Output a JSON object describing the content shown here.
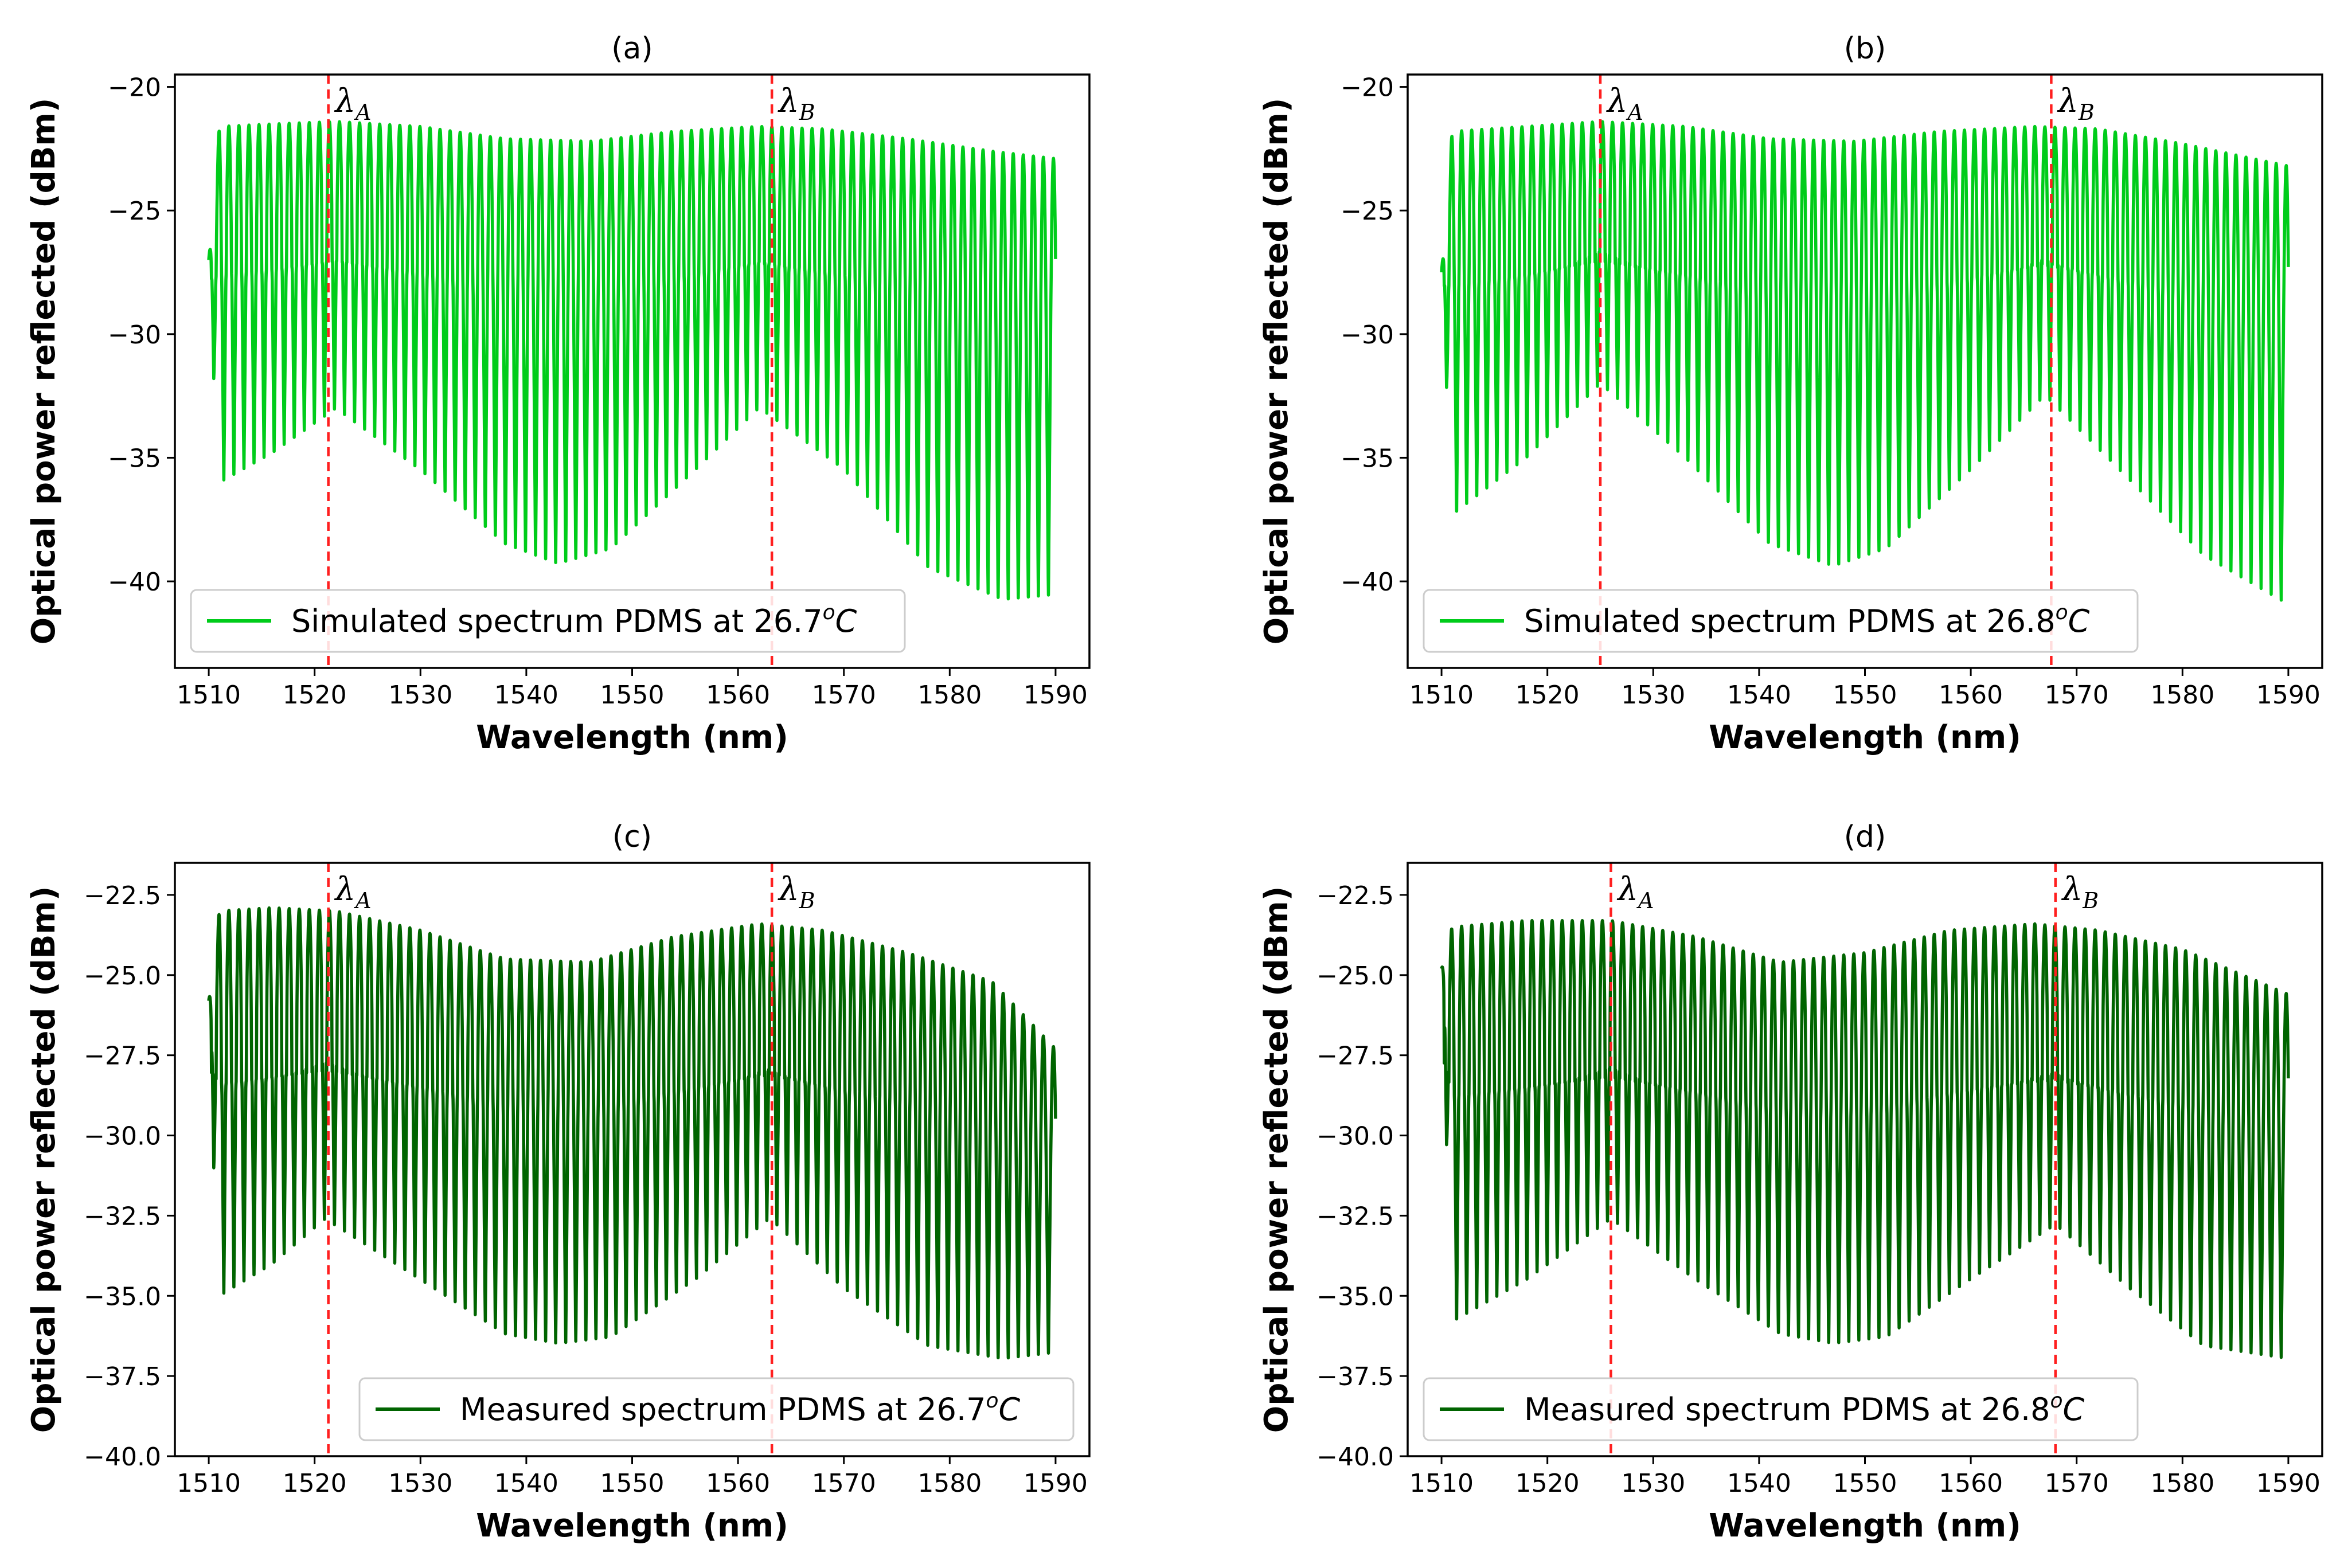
{
  "colors": {
    "simulated": "#00cc1a",
    "measured": "#006400",
    "marker": "#ff1f1f",
    "axis": "#000000",
    "legend_border": "#cccccc"
  },
  "chart_data": [
    {
      "type": "line",
      "panel": "(a)",
      "title": "(a)",
      "xlabel": "Wavelength (nm)",
      "ylabel": "Optical power reflected (dBm)",
      "xlim": [
        1506.8,
        1593.2
      ],
      "ylim": [
        -43.5,
        -19.5
      ],
      "xticks": [
        1510,
        1520,
        1530,
        1540,
        1550,
        1560,
        1570,
        1580,
        1590
      ],
      "yticks": [
        -40,
        -35,
        -30,
        -25,
        -20
      ],
      "ytick_labels": [
        "−40",
        "−35",
        "−30",
        "−25",
        "−20"
      ],
      "legend": {
        "text": "Simulated spectrum PDMS at 26.7",
        "sup": "o",
        "unit": "C",
        "location": "lower-left"
      },
      "markers": [
        {
          "label": "λ",
          "sub": "A",
          "x": 1521.3
        },
        {
          "label": "λ",
          "sub": "B",
          "x": 1563.2
        }
      ],
      "series": [
        {
          "name": "Simulated spectrum PDMS at 26.7°C",
          "color_key": "simulated",
          "x_range": [
            1510,
            1590
          ],
          "fringe_period_nm": 0.95,
          "upper_envelope": {
            "x": [
              1510,
              1511,
              1516,
              1522,
              1530,
              1538,
              1546,
              1554,
              1562,
              1568,
              1576,
              1584,
              1590
            ],
            "y": [
              -27.0,
              -21.6,
              -21.5,
              -21.4,
              -21.6,
              -22.1,
              -22.2,
              -21.8,
              -21.6,
              -21.7,
              -22.1,
              -22.6,
              -22.9
            ]
          },
          "lower_envelope": {
            "x": [
              1510,
              1511,
              1516,
              1522,
              1530,
              1538,
              1543,
              1548,
              1556,
              1562,
              1570,
              1578,
              1585,
              1590
            ],
            "y": [
              -28.0,
              -36.0,
              -34.8,
              -33.0,
              -35.5,
              -38.5,
              -39.3,
              -38.7,
              -35.5,
              -33.0,
              -35.5,
              -39.5,
              -40.8,
              -40.6
            ]
          },
          "secondary_minimum_y": -28.2
        }
      ]
    },
    {
      "type": "line",
      "panel": "(b)",
      "title": "(b)",
      "xlabel": "Wavelength (nm)",
      "ylabel": "Optical power reflected (dBm)",
      "xlim": [
        1506.8,
        1593.2
      ],
      "ylim": [
        -43.5,
        -19.5
      ],
      "xticks": [
        1510,
        1520,
        1530,
        1540,
        1550,
        1560,
        1570,
        1580,
        1590
      ],
      "yticks": [
        -40,
        -35,
        -30,
        -25,
        -20
      ],
      "ytick_labels": [
        "−40",
        "−35",
        "−30",
        "−25",
        "−20"
      ],
      "legend": {
        "text": "Simulated spectrum PDMS at 26.8",
        "sup": "o",
        "unit": "C",
        "location": "lower-left"
      },
      "markers": [
        {
          "label": "λ",
          "sub": "A",
          "x": 1525.0
        },
        {
          "label": "λ",
          "sub": "B",
          "x": 1567.6
        }
      ],
      "series": [
        {
          "name": "Simulated spectrum PDMS at 26.8°C",
          "color_key": "simulated",
          "x_range": [
            1510,
            1590
          ],
          "fringe_period_nm": 0.95,
          "upper_envelope": {
            "x": [
              1510,
              1511,
              1518,
              1525,
              1533,
              1541,
              1549,
              1557,
              1566,
              1572,
              1580,
              1590
            ],
            "y": [
              -27.5,
              -21.8,
              -21.6,
              -21.4,
              -21.6,
              -22.1,
              -22.2,
              -21.8,
              -21.6,
              -21.7,
              -22.3,
              -23.2
            ]
          },
          "lower_envelope": {
            "x": [
              1510,
              1511,
              1518,
              1525,
              1533,
              1541,
              1547,
              1552,
              1560,
              1567,
              1574,
              1582,
              1590
            ],
            "y": [
              -27.5,
              -37.3,
              -35.0,
              -32.0,
              -35.0,
              -38.5,
              -39.4,
              -38.7,
              -35.5,
              -32.5,
              -35.5,
              -39.0,
              -41.0
            ]
          },
          "secondary_minimum_y": -28.5
        }
      ]
    },
    {
      "type": "line",
      "panel": "(c)",
      "title": "(c)",
      "xlabel": "Wavelength (nm)",
      "ylabel": "Optical power reflected (dBm)",
      "xlim": [
        1506.8,
        1593.2
      ],
      "ylim": [
        -40.0,
        -21.5
      ],
      "xticks": [
        1510,
        1520,
        1530,
        1540,
        1550,
        1560,
        1570,
        1580,
        1590
      ],
      "yticks": [
        -40.0,
        -37.5,
        -35.0,
        -32.5,
        -30.0,
        -27.5,
        -25.0,
        -22.5
      ],
      "ytick_labels": [
        "−40.0",
        "−37.5",
        "−35.0",
        "−32.5",
        "−30.0",
        "−27.5",
        "−25.0",
        "−22.5"
      ],
      "legend": {
        "text": "Measured spectrum PDMS at 26.7",
        "sup": "o",
        "unit": "C",
        "location": "lower-right"
      },
      "markers": [
        {
          "label": "λ",
          "sub": "A",
          "x": 1521.3
        },
        {
          "label": "λ",
          "sub": "B",
          "x": 1563.2
        }
      ],
      "series": [
        {
          "name": "Measured spectrum PDMS at 26.7°C",
          "color_key": "measured",
          "x_range": [
            1510,
            1590
          ],
          "fringe_period_nm": 0.95,
          "upper_envelope": {
            "x": [
              1510,
              1511,
              1516,
              1522,
              1530,
              1538,
              1546,
              1554,
              1562,
              1568,
              1576,
              1584,
              1590
            ],
            "y": [
              -25.8,
              -23.0,
              -22.9,
              -23.0,
              -23.6,
              -24.5,
              -24.6,
              -23.8,
              -23.4,
              -23.6,
              -24.3,
              -25.2,
              -27.3
            ]
          },
          "lower_envelope": {
            "x": [
              1510,
              1511,
              1516,
              1521,
              1530,
              1538,
              1543,
              1548,
              1556,
              1563,
              1570,
              1578,
              1585,
              1590
            ],
            "y": [
              -27.4,
              -35.0,
              -34.0,
              -32.6,
              -34.5,
              -36.2,
              -36.5,
              -36.3,
              -34.5,
              -32.6,
              -34.8,
              -36.6,
              -37.0,
              -36.8
            ]
          },
          "secondary_minimum_y": -29.2
        }
      ]
    },
    {
      "type": "line",
      "panel": "(d)",
      "title": "(d)",
      "xlabel": "Wavelength (nm)",
      "ylabel": "Optical power reflected (dBm)",
      "xlim": [
        1506.8,
        1593.2
      ],
      "ylim": [
        -40.0,
        -21.5
      ],
      "xticks": [
        1510,
        1520,
        1530,
        1540,
        1550,
        1560,
        1570,
        1580,
        1590
      ],
      "yticks": [
        -40.0,
        -37.5,
        -35.0,
        -32.5,
        -30.0,
        -27.5,
        -25.0,
        -22.5
      ],
      "ytick_labels": [
        "−40.0",
        "−37.5",
        "−35.0",
        "−32.5",
        "−30.0",
        "−27.5",
        "−25.0",
        "−22.5"
      ],
      "legend": {
        "text": "Measured spectrum PDMS at 26.8",
        "sup": "o",
        "unit": "C",
        "location": "lower-left"
      },
      "markers": [
        {
          "label": "λ",
          "sub": "A",
          "x": 1526.0
        },
        {
          "label": "λ",
          "sub": "B",
          "x": 1568.0
        }
      ],
      "series": [
        {
          "name": "Measured spectrum PDMS at 26.8°C",
          "color_key": "measured",
          "x_range": [
            1510,
            1590
          ],
          "fringe_period_nm": 0.95,
          "upper_envelope": {
            "x": [
              1510,
              1511,
              1518,
              1526,
              1534,
              1542,
              1550,
              1558,
              1566,
              1572,
              1580,
              1590
            ],
            "y": [
              -24.8,
              -23.5,
              -23.3,
              -23.3,
              -23.8,
              -24.6,
              -24.3,
              -23.6,
              -23.4,
              -23.6,
              -24.2,
              -25.6
            ]
          },
          "lower_envelope": {
            "x": [
              1510,
              1511,
              1518,
              1526,
              1534,
              1542,
              1547,
              1552,
              1560,
              1568,
              1575,
              1582,
              1590
            ],
            "y": [
              -25.3,
              -35.8,
              -34.5,
              -32.6,
              -34.5,
              -36.2,
              -36.5,
              -36.3,
              -34.5,
              -32.8,
              -34.8,
              -36.6,
              -37.0
            ]
          },
          "secondary_minimum_y": -29.4
        }
      ]
    }
  ]
}
